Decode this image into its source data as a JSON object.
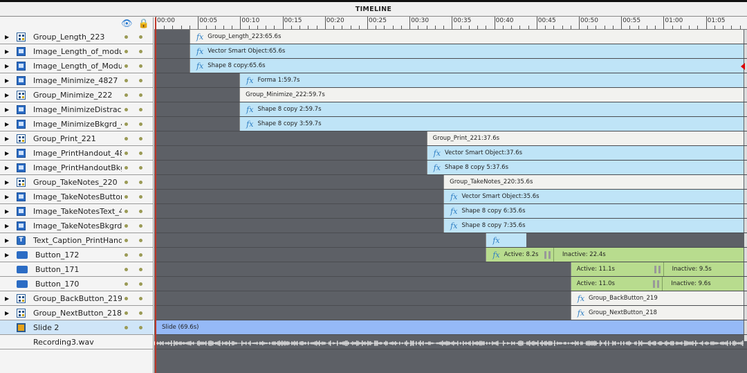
{
  "title": "TIMELINE",
  "header_icons": [
    "eye-icon",
    "lock-icon"
  ],
  "ruler": {
    "labels": [
      "00:00",
      "00:05",
      "00:10",
      "00:15",
      "00:20",
      "00:25",
      "00:30",
      "00:35",
      "00:40",
      "00:45",
      "00:50",
      "00:55",
      "01:00",
      "01:05"
    ],
    "seconds_per_label": 5,
    "total_seconds": 69.6
  },
  "colors": {
    "track_bg": "#5d6066",
    "blue_bar": "#bfe4f7",
    "white_bar": "#f2f2ef",
    "green_bar": "#b8dc8e",
    "slide_bar": "#95b9f7",
    "playhead": "#c0392b"
  },
  "layers": [
    {
      "name": "Group_Length_223",
      "icon": "group",
      "expand": true,
      "bar": {
        "style": "white",
        "fx": true,
        "label": "Group_Length_223:65.6s",
        "start": 4.0,
        "duration": 65.6
      }
    },
    {
      "name": "Image_Length_of_modul...",
      "icon": "image",
      "expand": true,
      "bar": {
        "style": "blue",
        "fx": true,
        "label": "Vector Smart Object:65.6s",
        "start": 4.0,
        "duration": 65.6
      }
    },
    {
      "name": "Image_Length_of_Modul...",
      "icon": "image",
      "expand": true,
      "bar": {
        "style": "blue",
        "fx": true,
        "label": "Shape 8 copy:65.6s",
        "start": 4.0,
        "duration": 65.6
      }
    },
    {
      "name": "Image_Minimize_4827",
      "icon": "image",
      "expand": true,
      "bar": {
        "style": "blue",
        "fx": true,
        "label": "Forma 1:59.7s",
        "start": 9.9,
        "duration": 59.7
      }
    },
    {
      "name": "Group_Minimize_222",
      "icon": "group",
      "expand": true,
      "bar": {
        "style": "white",
        "fx": false,
        "label": "Group_Minimize_222:59.7s",
        "start": 9.9,
        "duration": 59.7
      }
    },
    {
      "name": "Image_MinimizeDistracti...",
      "icon": "image",
      "expand": true,
      "bar": {
        "style": "blue",
        "fx": true,
        "label": "Shape 8 copy 2:59.7s",
        "start": 9.9,
        "duration": 59.7
      }
    },
    {
      "name": "Image_MinimizeBkgrd_48...",
      "icon": "image",
      "expand": true,
      "bar": {
        "style": "blue",
        "fx": true,
        "label": "Shape 8 copy 3:59.7s",
        "start": 9.9,
        "duration": 59.7
      }
    },
    {
      "name": "Group_Print_221",
      "icon": "group",
      "expand": true,
      "bar": {
        "style": "white",
        "fx": false,
        "label": "Group_Print_221:37.6s",
        "start": 32.0,
        "duration": 37.6
      }
    },
    {
      "name": "Image_PrintHandout_4824",
      "icon": "image",
      "expand": true,
      "bar": {
        "style": "blue",
        "fx": true,
        "label": "Vector Smart Object:37.6s",
        "start": 32.0,
        "duration": 37.6
      }
    },
    {
      "name": "Image_PrintHandoutBkgr...",
      "icon": "image",
      "expand": true,
      "bar": {
        "style": "blue",
        "fx": true,
        "label": "Shape 8 copy 5:37.6s",
        "start": 32.0,
        "duration": 37.6
      }
    },
    {
      "name": "Group_TakeNotes_220",
      "icon": "group",
      "expand": true,
      "bar": {
        "style": "white",
        "fx": false,
        "label": "Group_TakeNotes_220:35.6s",
        "start": 34.0,
        "duration": 35.6
      }
    },
    {
      "name": "Image_TakeNotesButton...",
      "icon": "image",
      "expand": true,
      "bar": {
        "style": "blue",
        "fx": true,
        "label": "Vector Smart Object:35.6s",
        "start": 34.0,
        "duration": 35.6
      }
    },
    {
      "name": "Image_TakeNotesText_4...",
      "icon": "image",
      "expand": true,
      "bar": {
        "style": "blue",
        "fx": true,
        "label": "Shape 8 copy 6:35.6s",
        "start": 34.0,
        "duration": 35.6
      }
    },
    {
      "name": "Image_TakeNotesBkgrd_...",
      "icon": "image",
      "expand": true,
      "bar": {
        "style": "blue",
        "fx": true,
        "label": "Shape 8 copy 7:35.6s",
        "start": 34.0,
        "duration": 35.6
      }
    },
    {
      "name": "Text_Caption_PrintHando...",
      "icon": "text",
      "expand": true,
      "bar": {
        "style": "blue",
        "fx": true,
        "label": "",
        "start": 39.0,
        "duration": 4.8
      }
    },
    {
      "name": "Button_172",
      "icon": "button",
      "expand": true,
      "bar": {
        "style": "green",
        "fx": true,
        "start": 39.0,
        "duration": 30.6,
        "active": "Active: 8.2s",
        "inactive": "Inactive: 22.4s",
        "active_s": 8.2
      }
    },
    {
      "name": "Button_171",
      "icon": "button",
      "expand": false,
      "bar": {
        "style": "green",
        "fx": false,
        "start": 49.0,
        "duration": 20.6,
        "active": "Active: 11.1s",
        "inactive": "Inactive: 9.5s",
        "active_s": 11.1
      }
    },
    {
      "name": "Button_170",
      "icon": "button",
      "expand": false,
      "bar": {
        "style": "green",
        "fx": false,
        "start": 49.0,
        "duration": 20.6,
        "active": "Active: 11.0s",
        "inactive": "Inactive: 9.6s",
        "active_s": 11.0
      }
    },
    {
      "name": "Group_BackButton_219",
      "icon": "group",
      "expand": true,
      "bar": {
        "style": "white",
        "fx": true,
        "label": "Group_BackButton_219",
        "start": 49.0,
        "duration": 20.6
      }
    },
    {
      "name": "Group_NextButton_218",
      "icon": "group",
      "expand": true,
      "bar": {
        "style": "white",
        "fx": true,
        "label": "Group_NextButton_218",
        "start": 49.0,
        "duration": 20.6
      }
    },
    {
      "name": "Slide 2",
      "icon": "slide",
      "expand": false,
      "selected": true,
      "bar": {
        "style": "slide",
        "fx": false,
        "label": "Slide (69.6s)",
        "start": 0,
        "duration": 69.6
      }
    },
    {
      "name": "Recording3.wav",
      "icon": "none",
      "expand": false,
      "audio": true
    }
  ]
}
